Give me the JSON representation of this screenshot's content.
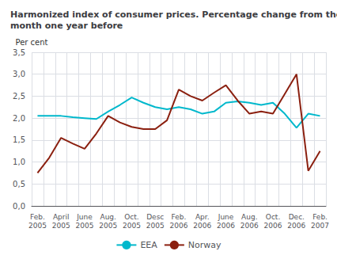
{
  "chart_data": {
    "type": "line",
    "title": "Harmonized index of consumer prices. Percentage change from the same\nmonth one year before",
    "ylabel": "Per cent",
    "categories": [
      "Feb.\n2005",
      null,
      "April\n2005",
      null,
      "June\n2005",
      null,
      "Aug.\n2005",
      null,
      "Oct.\n2005",
      null,
      "Desc\n2005",
      null,
      "Feb.\n2006",
      null,
      "Apr.\n2006",
      null,
      "June\n2006",
      null,
      "Aug.\n2006",
      null,
      "Oct.\n2006",
      null,
      "Dec.\n2006",
      null,
      "Feb.\n2007"
    ],
    "series": [
      {
        "name": "EEA",
        "color": "#00b8cc",
        "values": [
          2.05,
          2.05,
          2.05,
          2.02,
          2.0,
          1.98,
          2.15,
          2.3,
          2.47,
          2.35,
          2.25,
          2.2,
          2.25,
          2.2,
          2.1,
          2.15,
          2.35,
          2.38,
          2.35,
          2.3,
          2.35,
          2.1,
          1.78,
          2.1,
          2.05
        ]
      },
      {
        "name": "Norway",
        "color": "#8b2010",
        "values": [
          0.75,
          1.1,
          1.55,
          1.42,
          1.3,
          1.65,
          2.05,
          1.9,
          1.8,
          1.75,
          1.75,
          1.95,
          2.65,
          2.5,
          2.4,
          2.58,
          2.75,
          2.4,
          2.1,
          2.15,
          2.1,
          2.55,
          3.0,
          0.8,
          1.25
        ]
      }
    ],
    "ylim": [
      0,
      3.5
    ],
    "yticks": [
      {
        "value": 0.0,
        "label": "0,0"
      },
      {
        "value": 0.5,
        "label": "0,5"
      },
      {
        "value": 1.0,
        "label": "1,0"
      },
      {
        "value": 1.5,
        "label": "1,5"
      },
      {
        "value": 2.0,
        "label": "2,0"
      },
      {
        "value": 2.5,
        "label": "2,5"
      },
      {
        "value": 3.0,
        "label": "3,0"
      },
      {
        "value": 3.5,
        "label": "3,5"
      }
    ],
    "grid": true,
    "legend": "bottom"
  }
}
